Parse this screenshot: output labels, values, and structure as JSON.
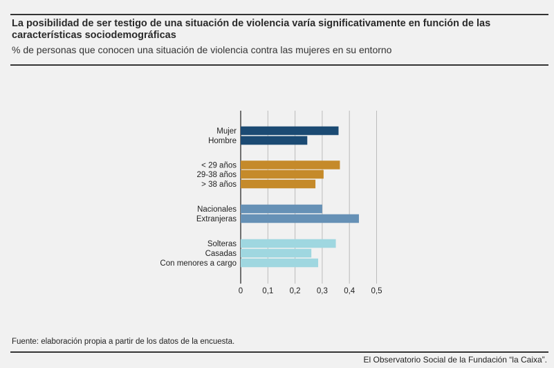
{
  "header": {
    "title": "La posibilidad de ser testigo de una situación de violencia varía significativamente en función de las características sociodemográficas",
    "subtitle": "% de personas que conocen una situación de violencia contra las mujeres en su entorno"
  },
  "chart_data": {
    "type": "bar",
    "orientation": "horizontal",
    "categories": [
      "Mujer",
      "Hombre",
      "< 29 años",
      "29-38 años",
      "> 38 años",
      "Nacionales",
      "Extranjeras",
      "Solteras",
      "Casadas",
      "Con menores a cargo"
    ],
    "values": [
      0.36,
      0.245,
      0.365,
      0.305,
      0.275,
      0.3,
      0.435,
      0.35,
      0.26,
      0.285
    ],
    "groups": [
      {
        "items": [
          "Mujer",
          "Hombre"
        ],
        "color": "#1b4a73"
      },
      {
        "items": [
          "< 29 años",
          "29-38 años",
          "> 38 años"
        ],
        "color": "#c58a2a"
      },
      {
        "items": [
          "Nacionales",
          "Extranjeras"
        ],
        "color": "#6691b6"
      },
      {
        "items": [
          "Solteras",
          "Casadas",
          "Con menores a cargo"
        ],
        "color": "#9fd7e0"
      }
    ],
    "xticks": [
      "0",
      "0,1",
      "0,2",
      "0,3",
      "0,4",
      "0,5"
    ],
    "xlim": [
      0,
      0.5
    ],
    "grid": true
  },
  "footer": {
    "source": "Fuente: elaboración propia a partir de los datos de la encuesta.",
    "credit": "El Observatorio Social de la Fundación “la Caixa”."
  }
}
